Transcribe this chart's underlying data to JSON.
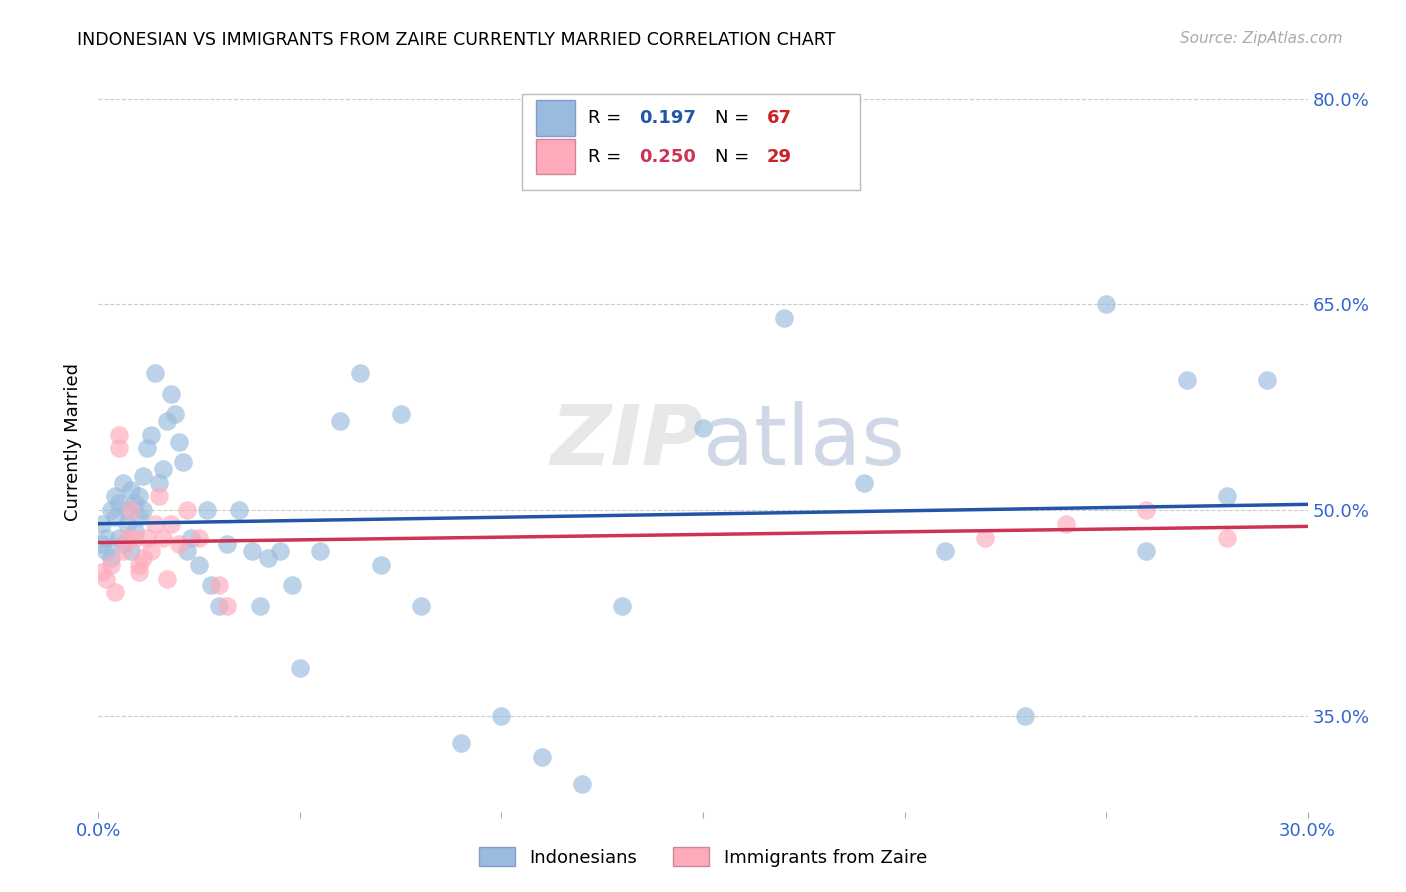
{
  "title": "INDONESIAN VS IMMIGRANTS FROM ZAIRE CURRENTLY MARRIED CORRELATION CHART",
  "source": "Source: ZipAtlas.com",
  "ylabel": "Currently Married",
  "xlim": [
    0.0,
    0.3
  ],
  "ylim": [
    0.28,
    0.82
  ],
  "x_tick_positions": [
    0.0,
    0.05,
    0.1,
    0.15,
    0.2,
    0.25,
    0.3
  ],
  "x_tick_labels": [
    "0.0%",
    "",
    "",
    "",
    "",
    "",
    "30.0%"
  ],
  "y_tick_positions": [
    0.35,
    0.5,
    0.65,
    0.8
  ],
  "y_tick_labels": [
    "35.0%",
    "50.0%",
    "65.0%",
    "80.0%"
  ],
  "background_color": "#ffffff",
  "grid_color": "#cccccc",
  "blue_color": "#99bbdd",
  "pink_color": "#ffaabb",
  "blue_line_color": "#2255aa",
  "pink_line_color": "#cc3355",
  "blue_text_color": "#2255aa",
  "pink_text_color": "#cc3355",
  "red_text_color": "#cc2222",
  "indonesian_x": [
    0.001,
    0.001,
    0.002,
    0.002,
    0.003,
    0.003,
    0.004,
    0.004,
    0.005,
    0.005,
    0.006,
    0.006,
    0.007,
    0.007,
    0.008,
    0.008,
    0.009,
    0.009,
    0.01,
    0.01,
    0.011,
    0.011,
    0.012,
    0.013,
    0.014,
    0.015,
    0.016,
    0.017,
    0.018,
    0.019,
    0.02,
    0.021,
    0.022,
    0.023,
    0.025,
    0.027,
    0.028,
    0.03,
    0.032,
    0.035,
    0.038,
    0.04,
    0.042,
    0.045,
    0.048,
    0.05,
    0.055,
    0.06,
    0.065,
    0.07,
    0.075,
    0.08,
    0.09,
    0.1,
    0.11,
    0.12,
    0.13,
    0.15,
    0.17,
    0.19,
    0.21,
    0.23,
    0.25,
    0.26,
    0.27,
    0.28,
    0.29
  ],
  "indonesian_y": [
    0.475,
    0.49,
    0.48,
    0.47,
    0.5,
    0.465,
    0.51,
    0.495,
    0.48,
    0.505,
    0.52,
    0.475,
    0.49,
    0.5,
    0.515,
    0.47,
    0.485,
    0.505,
    0.495,
    0.51,
    0.525,
    0.5,
    0.545,
    0.555,
    0.6,
    0.52,
    0.53,
    0.565,
    0.585,
    0.57,
    0.55,
    0.535,
    0.47,
    0.48,
    0.46,
    0.5,
    0.445,
    0.43,
    0.475,
    0.5,
    0.47,
    0.43,
    0.465,
    0.47,
    0.445,
    0.385,
    0.47,
    0.565,
    0.6,
    0.46,
    0.57,
    0.43,
    0.33,
    0.35,
    0.32,
    0.3,
    0.43,
    0.56,
    0.64,
    0.52,
    0.47,
    0.35,
    0.65,
    0.47,
    0.595,
    0.51,
    0.595
  ],
  "zaire_x": [
    0.001,
    0.002,
    0.003,
    0.004,
    0.005,
    0.005,
    0.006,
    0.007,
    0.008,
    0.009,
    0.01,
    0.01,
    0.011,
    0.012,
    0.013,
    0.014,
    0.015,
    0.016,
    0.017,
    0.018,
    0.02,
    0.022,
    0.025,
    0.03,
    0.032,
    0.22,
    0.24,
    0.26,
    0.28
  ],
  "zaire_y": [
    0.455,
    0.45,
    0.46,
    0.44,
    0.555,
    0.545,
    0.47,
    0.48,
    0.5,
    0.48,
    0.46,
    0.455,
    0.465,
    0.48,
    0.47,
    0.49,
    0.51,
    0.48,
    0.45,
    0.49,
    0.475,
    0.5,
    0.48,
    0.445,
    0.43,
    0.48,
    0.49,
    0.5,
    0.48
  ],
  "blue_regression": [
    0.46,
    0.52
  ],
  "pink_regression": [
    0.46,
    0.505
  ]
}
